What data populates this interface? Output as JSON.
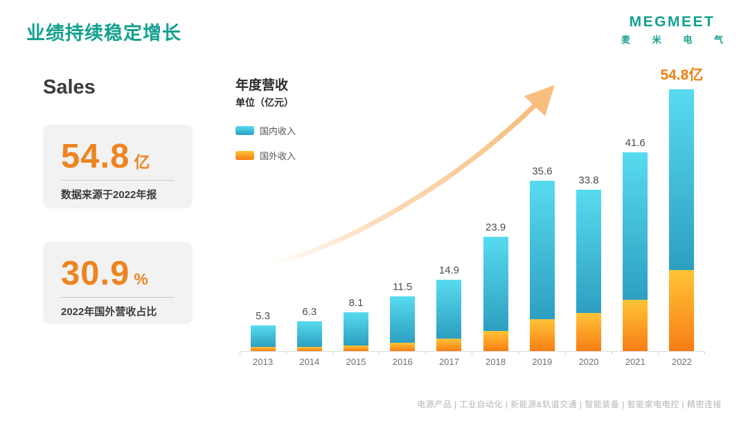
{
  "page": {
    "title": "业绩持续稳定增长",
    "logo": {
      "name": "MEGMEET",
      "subtitle": "麦米电气",
      "color": "#14A18F"
    },
    "footer": "电源产品 | 工业自动化 | 新能源&轨道交通 | 智能装备 | 智能家电电控 | 精密连接"
  },
  "sidebar": {
    "heading": "Sales",
    "cards": [
      {
        "value": "54.8",
        "unit": "亿",
        "caption": "数据来源于2022年报",
        "accent_color": "#EE8420"
      },
      {
        "value": "30.9",
        "unit": "%",
        "caption": "2022年国外营收占比",
        "accent_color": "#EE8420"
      }
    ]
  },
  "chart": {
    "title": "年度营收",
    "unit_label": "单位（亿元）",
    "legend": [
      {
        "label": "国内收入",
        "color": "#3FC8DF"
      },
      {
        "label": "国外收入",
        "color": "#FFA81C"
      }
    ],
    "arrow_color": "#F8BE80"
  },
  "chart_data": {
    "type": "bar",
    "stacked": true,
    "title": "年度营收",
    "unit": "亿元",
    "categories": [
      "2013",
      "2014",
      "2015",
      "2016",
      "2017",
      "2018",
      "2019",
      "2020",
      "2021",
      "2022"
    ],
    "series": [
      {
        "name": "国内收入",
        "color_top": "#57DBEF",
        "color_bottom": "#2D9FC1",
        "values": [
          4.4,
          5.4,
          6.9,
          9.8,
          12.3,
          19.7,
          28.9,
          25.8,
          30.9,
          37.9
        ]
      },
      {
        "name": "国外收入",
        "color_top": "#FFC437",
        "color_bottom": "#F87D14",
        "values": [
          0.9,
          0.9,
          1.2,
          1.7,
          2.6,
          4.2,
          6.7,
          8.0,
          10.7,
          16.9
        ]
      }
    ],
    "totals": [
      5.3,
      6.3,
      8.1,
      11.5,
      14.9,
      23.9,
      35.6,
      33.8,
      41.6,
      54.8
    ],
    "total_labels": [
      "5.3",
      "6.3",
      "8.1",
      "11.5",
      "14.9",
      "23.9",
      "35.6",
      "33.8",
      "41.6",
      "54.8亿"
    ],
    "highlight_last_label": true,
    "xlabel": "",
    "ylabel": "",
    "ylim": [
      0,
      57
    ],
    "grid": false,
    "legend_position": "top-left"
  }
}
